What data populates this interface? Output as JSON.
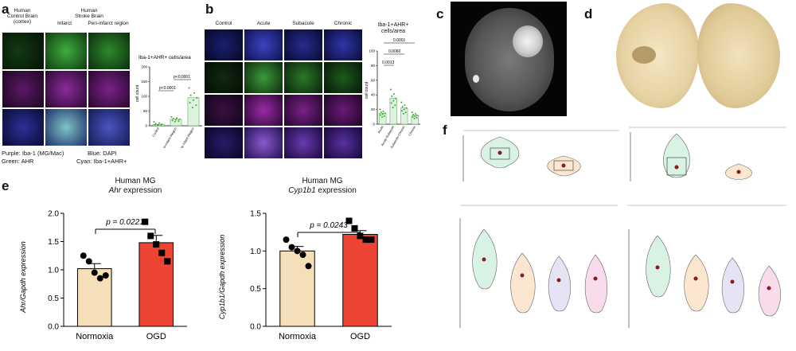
{
  "panel_a": {
    "label": "a",
    "header_control": "Human\nControl Brain\n(cortex)",
    "header_stroke": "Human\nStroke Brain",
    "sub_infarct": "Infarct",
    "sub_periinfarct": "Peri-infarct region",
    "legend_purple": "Purple: Iba-1 (MG/Mac)",
    "legend_blue": "Blue: DAPI",
    "legend_green": "Green: AHR",
    "legend_cyan": "Cyan: Iba-1+AHR+",
    "colors": {
      "green": "#2e8b2e",
      "purple": "#7a1f8a",
      "merge": "#2a2fa0"
    }
  },
  "chart_a": {
    "type": "scatter-bar",
    "title": "Iba-1+AHR+ cells/area",
    "ylabel": "cell count",
    "ylim": [
      0,
      200
    ],
    "yticks": [
      "0",
      "50",
      "100",
      "150",
      "200"
    ],
    "categories": [
      "Control",
      "Stroke Peri-infarct Region",
      "Stroke Infarct Region"
    ],
    "values": [
      5,
      22,
      95
    ],
    "p_values": [
      "p<0.0001",
      "p<0.0001"
    ],
    "color": "#3aa53a"
  },
  "panel_b": {
    "label": "b",
    "headers": [
      "Control",
      "Acute",
      "Subacute",
      "Chronic"
    ],
    "chart_title": "Iba-1+AHR+\ncells/area",
    "p_values": [
      "0.0001",
      "0.0060",
      "0.0013"
    ]
  },
  "chart_b": {
    "type": "scatter-bar",
    "ylabel": "cell count",
    "yticks": [
      "0",
      "20",
      "40",
      "60",
      "80",
      "100"
    ],
    "ylim": [
      0,
      100
    ],
    "categories": [
      "Acute",
      "Acute-Subacute",
      "Subacute-Chronic",
      "Chronic"
    ],
    "values": [
      15,
      35,
      22,
      12
    ],
    "color": "#3aa53a"
  },
  "panel_c": {
    "label": "c"
  },
  "panel_d": {
    "label": "d"
  },
  "panel_e": {
    "label": "e",
    "chart1": {
      "title_line1": "Human MG",
      "title_gene": "Ahr",
      "title_suffix": " expression",
      "ylabel": "Ahr/Gapdh expression",
      "p_value": "p = 0.0221"
    },
    "chart2": {
      "title_line1": "Human MG",
      "title_gene": "Cyp1b1",
      "title_suffix": " expression",
      "ylabel": "Cyp1b1/Gapdh expression",
      "p_value": "p = 0.0243"
    }
  },
  "chart_data": [
    {
      "type": "bar",
      "categories": [
        "Normoxia",
        "OGD"
      ],
      "values": [
        1.02,
        1.48
      ],
      "errors": [
        0.09,
        0.13
      ],
      "points": [
        [
          1.25,
          1.15,
          0.95,
          0.85,
          0.9
        ],
        [
          1.85,
          1.6,
          1.45,
          1.3,
          1.15
        ]
      ],
      "ylim": [
        0.0,
        2.0
      ],
      "yticks": [
        "0.0",
        "0.5",
        "1.0",
        "1.5",
        "2.0"
      ],
      "colors": [
        "#f5dfb8",
        "#ee4433"
      ]
    },
    {
      "type": "bar",
      "categories": [
        "Normoxia",
        "OGD"
      ],
      "values": [
        1.0,
        1.22
      ],
      "errors": [
        0.06,
        0.05
      ],
      "points": [
        [
          1.15,
          1.05,
          1.0,
          0.95,
          0.8
        ],
        [
          1.4,
          1.3,
          1.2,
          1.15,
          1.15
        ]
      ],
      "ylim": [
        0.0,
        1.5
      ],
      "yticks": [
        "0.0",
        "0.5",
        "1.0",
        "1.5"
      ],
      "colors": [
        "#f5dfb8",
        "#ee4433"
      ]
    }
  ],
  "panel_f": {
    "label": "f"
  }
}
